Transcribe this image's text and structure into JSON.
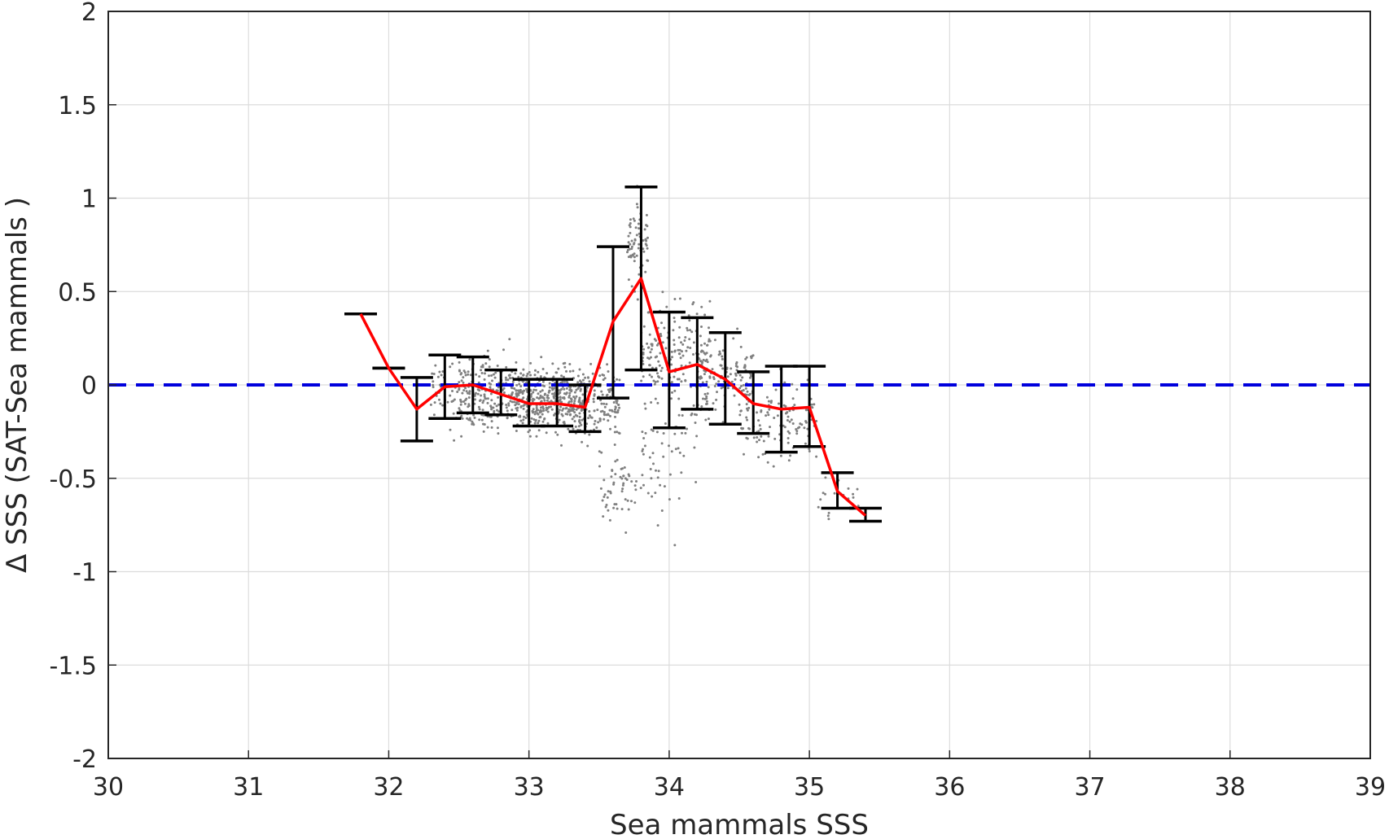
{
  "chart_data": {
    "type": "scatter",
    "xlabel": "Sea mammals  SSS",
    "ylabel": "Δ SSS (SAT-Sea mammals )",
    "xlim": [
      30,
      39
    ],
    "ylim": [
      -2,
      2
    ],
    "xticks": [
      30,
      31,
      32,
      33,
      34,
      35,
      36,
      37,
      38,
      39
    ],
    "xtick_labels": [
      "30",
      "31",
      "32",
      "33",
      "34",
      "35",
      "36",
      "37",
      "38",
      "39"
    ],
    "yticks": [
      2,
      1.5,
      1,
      0.5,
      0,
      -0.5,
      -1,
      -1.5,
      -2
    ],
    "ytick_labels": [
      "2",
      "1.5",
      "1",
      "0.5",
      "0",
      "-0.5",
      "-1",
      "-1.5",
      "-2"
    ],
    "grid": true,
    "colors": {
      "scatter": "#808080",
      "mean_line": "#ff0000",
      "error_bars": "#000000",
      "zero_line": "#0000dd",
      "grid": "#dcdcdc",
      "axes": "#262626"
    },
    "zero_reference": {
      "y": 0,
      "style": "dashed"
    },
    "binned_mean": {
      "x": [
        31.8,
        32.0,
        32.2,
        32.4,
        32.6,
        32.8,
        33.0,
        33.2,
        33.4,
        33.6,
        33.8,
        34.0,
        34.2,
        34.4,
        34.6,
        34.8,
        35.0,
        35.2,
        35.4
      ],
      "y": [
        0.38,
        0.09,
        -0.13,
        -0.01,
        0.0,
        -0.05,
        -0.1,
        -0.1,
        -0.12,
        0.34,
        0.57,
        0.07,
        0.11,
        0.03,
        -0.1,
        -0.13,
        -0.12,
        -0.57,
        -0.7
      ]
    },
    "error_bars": [
      {
        "x": 31.8,
        "low": 0.38,
        "high": 0.38
      },
      {
        "x": 32.0,
        "low": 0.09,
        "high": 0.09
      },
      {
        "x": 32.2,
        "low": -0.3,
        "high": 0.04
      },
      {
        "x": 32.4,
        "low": -0.18,
        "high": 0.16
      },
      {
        "x": 32.6,
        "low": -0.15,
        "high": 0.15
      },
      {
        "x": 32.8,
        "low": -0.16,
        "high": 0.08
      },
      {
        "x": 33.0,
        "low": -0.22,
        "high": 0.03
      },
      {
        "x": 33.2,
        "low": -0.22,
        "high": 0.03
      },
      {
        "x": 33.4,
        "low": -0.25,
        "high": 0.0
      },
      {
        "x": 33.6,
        "low": -0.07,
        "high": 0.74
      },
      {
        "x": 33.8,
        "low": 0.08,
        "high": 1.06
      },
      {
        "x": 34.0,
        "low": -0.23,
        "high": 0.39
      },
      {
        "x": 34.2,
        "low": -0.13,
        "high": 0.36
      },
      {
        "x": 34.4,
        "low": -0.21,
        "high": 0.28
      },
      {
        "x": 34.6,
        "low": -0.26,
        "high": 0.07
      },
      {
        "x": 34.8,
        "low": -0.36,
        "high": 0.1
      },
      {
        "x": 35.0,
        "low": -0.33,
        "high": 0.1
      },
      {
        "x": 35.2,
        "low": -0.66,
        "high": -0.47
      },
      {
        "x": 35.4,
        "low": -0.73,
        "high": -0.66
      }
    ],
    "scatter_clusters": [
      {
        "x_range": [
          32.3,
          32.6
        ],
        "y_mean": -0.05,
        "y_spread": 0.15,
        "n": 50
      },
      {
        "x_range": [
          32.5,
          32.9
        ],
        "y_mean": -0.05,
        "y_spread": 0.17,
        "n": 220
      },
      {
        "x_range": [
          32.9,
          33.4
        ],
        "y_mean": -0.08,
        "y_spread": 0.14,
        "n": 420
      },
      {
        "x_range": [
          33.35,
          33.65
        ],
        "y_mean": -0.1,
        "y_spread": 0.15,
        "n": 140
      },
      {
        "x_range": [
          33.5,
          33.8
        ],
        "y_mean": -0.55,
        "y_spread": 0.14,
        "n": 55
      },
      {
        "x_range": [
          33.7,
          33.85
        ],
        "y_mean": 0.75,
        "y_spread": 0.2,
        "n": 70
      },
      {
        "x_range": [
          33.8,
          34.3
        ],
        "y_mean": 0.15,
        "y_spread": 0.22,
        "n": 200
      },
      {
        "x_range": [
          33.8,
          34.2
        ],
        "y_mean": -0.35,
        "y_spread": 0.25,
        "n": 60
      },
      {
        "x_range": [
          34.2,
          34.6
        ],
        "y_mean": 0.03,
        "y_spread": 0.16,
        "n": 110
      },
      {
        "x_range": [
          34.5,
          35.05
        ],
        "y_mean": -0.2,
        "y_spread": 0.17,
        "n": 120
      },
      {
        "x_range": [
          35.05,
          35.4
        ],
        "y_mean": -0.6,
        "y_spread": 0.08,
        "n": 20
      }
    ]
  }
}
